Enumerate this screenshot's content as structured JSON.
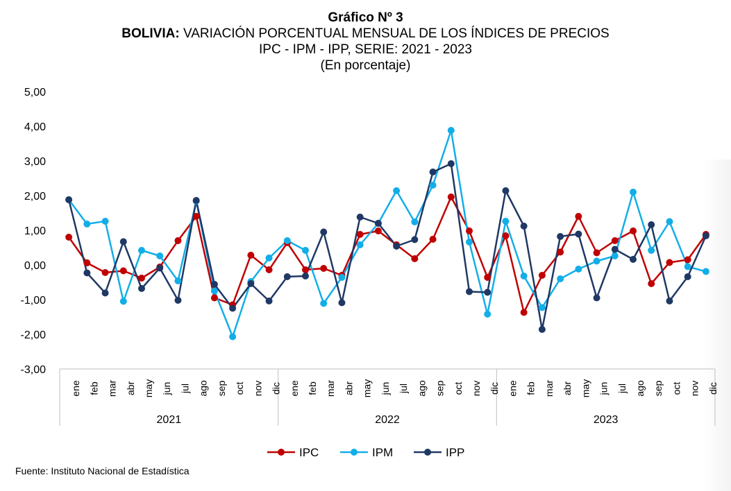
{
  "header": {
    "figure_label": "Gráfico Nº 3",
    "country": "BOLIVIA:",
    "title": "VARIACIÓN PORCENTUAL MENSUAL DE LOS ÍNDICES DE PRECIOS",
    "subtitle": "IPC - IPM - IPP, SERIE: 2021 - 2023",
    "unit": "(En porcentaje)"
  },
  "source": "Fuente: Instituto Nacional de Estadística",
  "chart_data": {
    "type": "line",
    "months": [
      "ene",
      "feb",
      "mar",
      "abr",
      "may",
      "jun",
      "jul",
      "ago",
      "sep",
      "oct",
      "nov",
      "dic"
    ],
    "years": [
      "2021",
      "2022",
      "2023"
    ],
    "ylim": [
      -3,
      5
    ],
    "yticks": [
      "5,00",
      "4,00",
      "3,00",
      "2,00",
      "1,00",
      "0,00",
      "-1,00",
      "-2,00",
      "-3,00"
    ],
    "ytick_values": [
      5,
      4,
      3,
      2,
      1,
      0,
      -1,
      -2,
      -3
    ],
    "grid": false,
    "legend_position": "bottom",
    "series": [
      {
        "name": "IPC",
        "color": "#c00000",
        "values": [
          0.8,
          0.06,
          -0.22,
          -0.17,
          -0.38,
          -0.06,
          0.7,
          1.4,
          -0.95,
          -1.15,
          0.28,
          -0.14,
          0.64,
          -0.14,
          -0.1,
          -0.3,
          0.88,
          0.98,
          0.58,
          0.18,
          0.74,
          1.96,
          0.98,
          -0.36,
          0.84,
          -1.37,
          -0.3,
          0.37,
          1.4,
          0.35,
          0.7,
          0.98,
          -0.54,
          0.07,
          0.15,
          0.88
        ]
      },
      {
        "name": "IPM",
        "color": "#12aee8",
        "values": [
          1.88,
          1.18,
          1.26,
          -1.05,
          0.42,
          0.26,
          -0.46,
          1.84,
          -0.75,
          -2.07,
          -0.48,
          0.2,
          0.7,
          0.42,
          -1.11,
          -0.36,
          0.58,
          1.2,
          2.14,
          1.24,
          2.3,
          3.88,
          0.66,
          -1.42,
          1.26,
          -0.32,
          -1.23,
          -0.4,
          -0.12,
          0.11,
          0.26,
          2.1,
          0.42,
          1.25,
          -0.05,
          -0.19
        ]
      },
      {
        "name": "IPP",
        "color": "#1f3864",
        "values": [
          1.88,
          -0.23,
          -0.81,
          0.67,
          -0.68,
          -0.09,
          -1.02,
          1.86,
          -0.56,
          -1.25,
          -0.54,
          -1.04,
          -0.34,
          -0.32,
          0.95,
          -1.09,
          1.38,
          1.2,
          0.54,
          0.73,
          2.68,
          2.92,
          -0.77,
          -0.79,
          2.14,
          1.12,
          -1.86,
          0.82,
          0.89,
          -0.95,
          0.45,
          0.16,
          1.16,
          -1.04,
          -0.34,
          0.84
        ]
      }
    ]
  }
}
